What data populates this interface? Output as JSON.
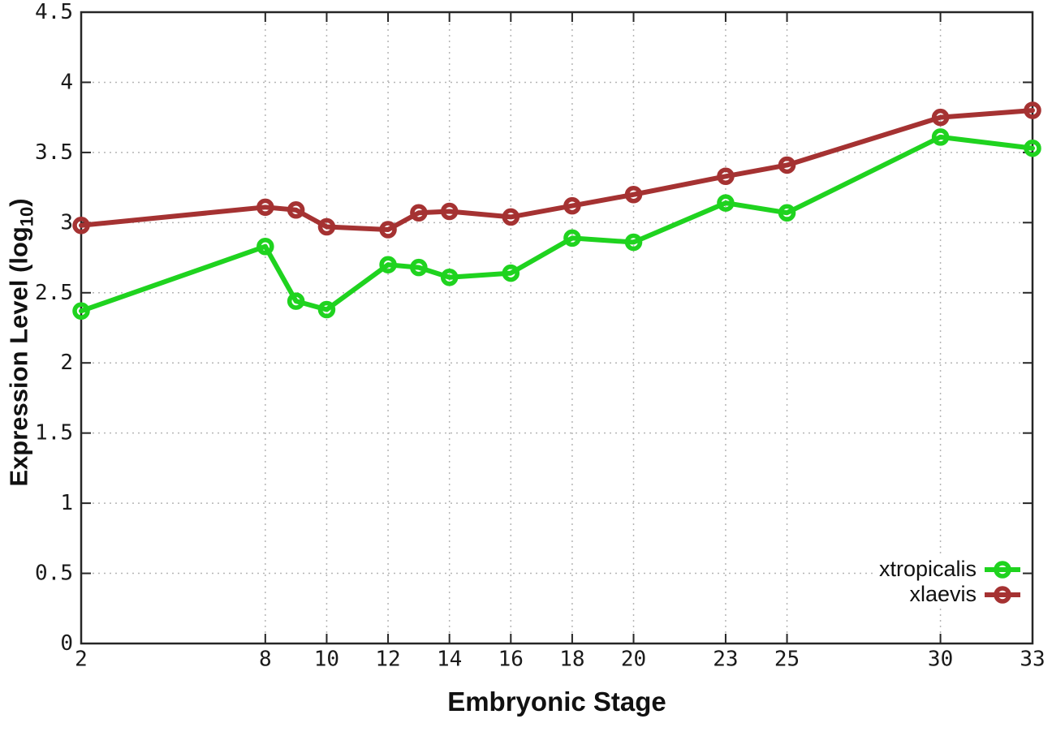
{
  "chart_data": {
    "type": "line",
    "title": "",
    "xlabel": "Embryonic Stage",
    "ylabel_prefix": "Expression Level (log",
    "ylabel_sub": "10",
    "ylabel_suffix": ")",
    "xlim": [
      2,
      33
    ],
    "ylim": [
      0,
      4.5
    ],
    "x_ticks": [
      2,
      8,
      10,
      12,
      14,
      16,
      18,
      20,
      23,
      25,
      30,
      33
    ],
    "y_ticks": [
      0,
      0.5,
      1,
      1.5,
      2,
      2.5,
      3,
      3.5,
      4,
      4.5
    ],
    "grid": true,
    "legend_position": "bottom-right",
    "x": [
      2,
      8,
      9,
      10,
      12,
      13,
      14,
      16,
      18,
      20,
      23,
      25,
      30,
      33
    ],
    "series": [
      {
        "name": "xtropicalis",
        "color": "#1fd31f",
        "values": [
          2.37,
          2.83,
          2.44,
          2.38,
          2.7,
          2.68,
          2.61,
          2.64,
          2.89,
          2.86,
          3.14,
          3.07,
          3.61,
          3.53
        ]
      },
      {
        "name": "xlaevis",
        "color": "#a53232",
        "values": [
          2.98,
          3.11,
          3.09,
          2.97,
          2.95,
          3.07,
          3.08,
          3.04,
          3.12,
          3.2,
          3.33,
          3.41,
          3.75,
          3.8
        ]
      }
    ],
    "colors": {
      "axis": "#262626",
      "grid": "#b5b5b5",
      "tick_text": "#1a1a1a"
    }
  }
}
